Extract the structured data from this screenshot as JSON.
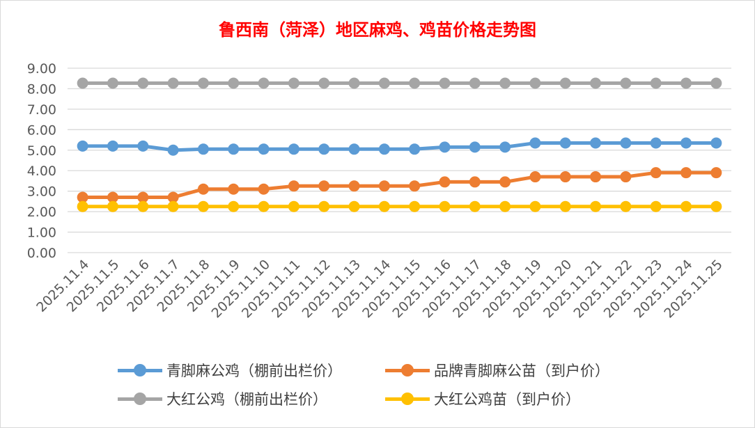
{
  "chart_data": {
    "type": "line",
    "title": "鲁西南（菏泽）地区麻鸡、鸡苗价格走势图",
    "xlabel": "",
    "ylabel": "",
    "ylim": [
      0,
      9
    ],
    "yticks": [
      "0.00",
      "1.00",
      "2.00",
      "3.00",
      "4.00",
      "5.00",
      "6.00",
      "7.00",
      "8.00",
      "9.00"
    ],
    "grid": true,
    "legend_position": "bottom",
    "categories": [
      "2025.11.4",
      "2025.11.5",
      "2025.11.6",
      "2025.11.7",
      "2025.11.8",
      "2025.11.9",
      "2025.11.10",
      "2025.11.11",
      "2025.11.12",
      "2025.11.13",
      "2025.11.14",
      "2025.11.15",
      "2025.11.16",
      "2025.11.17",
      "2025.11.18",
      "2025.11.19",
      "2025.11.20",
      "2025.11.21",
      "2025.11.22",
      "2025.11.23",
      "2025.11.24",
      "2025.11.25"
    ],
    "series": [
      {
        "name": "青脚麻公鸡（棚前出栏价）",
        "color": "#5b9bd5",
        "values": [
          5.2,
          5.2,
          5.2,
          5.0,
          5.05,
          5.05,
          5.05,
          5.05,
          5.05,
          5.05,
          5.05,
          5.05,
          5.15,
          5.15,
          5.15,
          5.35,
          5.35,
          5.35,
          5.35,
          5.35,
          5.35,
          5.35
        ]
      },
      {
        "name": "品牌青脚麻公苗（到户价）",
        "color": "#ed7d31",
        "values": [
          2.7,
          2.7,
          2.7,
          2.7,
          3.1,
          3.1,
          3.1,
          3.25,
          3.25,
          3.25,
          3.25,
          3.25,
          3.45,
          3.45,
          3.45,
          3.7,
          3.7,
          3.7,
          3.7,
          3.9,
          3.9,
          3.9
        ]
      },
      {
        "name": "大红公鸡（棚前出栏价）",
        "color": "#a5a5a5",
        "values": [
          8.27,
          8.27,
          8.27,
          8.27,
          8.27,
          8.27,
          8.27,
          8.27,
          8.27,
          8.27,
          8.27,
          8.27,
          8.27,
          8.27,
          8.27,
          8.27,
          8.27,
          8.27,
          8.27,
          8.27,
          8.27,
          8.27
        ]
      },
      {
        "name": "大红公鸡苗（到户价）",
        "color": "#ffc000",
        "values": [
          2.25,
          2.25,
          2.25,
          2.25,
          2.25,
          2.25,
          2.25,
          2.25,
          2.25,
          2.25,
          2.25,
          2.25,
          2.25,
          2.25,
          2.25,
          2.25,
          2.25,
          2.25,
          2.25,
          2.25,
          2.25,
          2.25
        ]
      }
    ]
  }
}
